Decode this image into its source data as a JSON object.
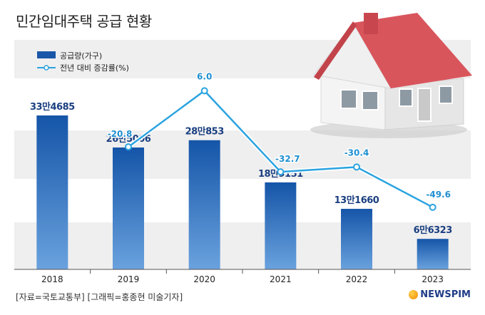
{
  "title": "민간임대주택 공급 현황",
  "source": "[자료=국토교통부] [그래픽=홍종현 미술기자]",
  "brand": "NEWSPIM",
  "chart_data": {
    "type": "bar",
    "categories": [
      "2018",
      "2019",
      "2020",
      "2021",
      "2022",
      "2023"
    ],
    "series": [
      {
        "name": "공급량(가구)",
        "type": "bar",
        "values": [
          334685,
          265006,
          280853,
          189151,
          131660,
          66323
        ],
        "labels": [
          "33만4685",
          "26만5006",
          "28만853",
          "18만9151",
          "13만1660",
          "6만6323"
        ],
        "color": "#1a56a8"
      },
      {
        "name": "전년 대비 증감률(%)",
        "type": "line",
        "values": [
          null,
          -20.8,
          6.0,
          -32.7,
          -30.4,
          -49.6
        ],
        "labels": [
          "",
          "-20.8",
          "6.0",
          "-32.7",
          "-30.4",
          "-49.6"
        ],
        "color": "#2aa3e0"
      }
    ],
    "legend_position": "top-left",
    "grid": "alternating bands"
  }
}
